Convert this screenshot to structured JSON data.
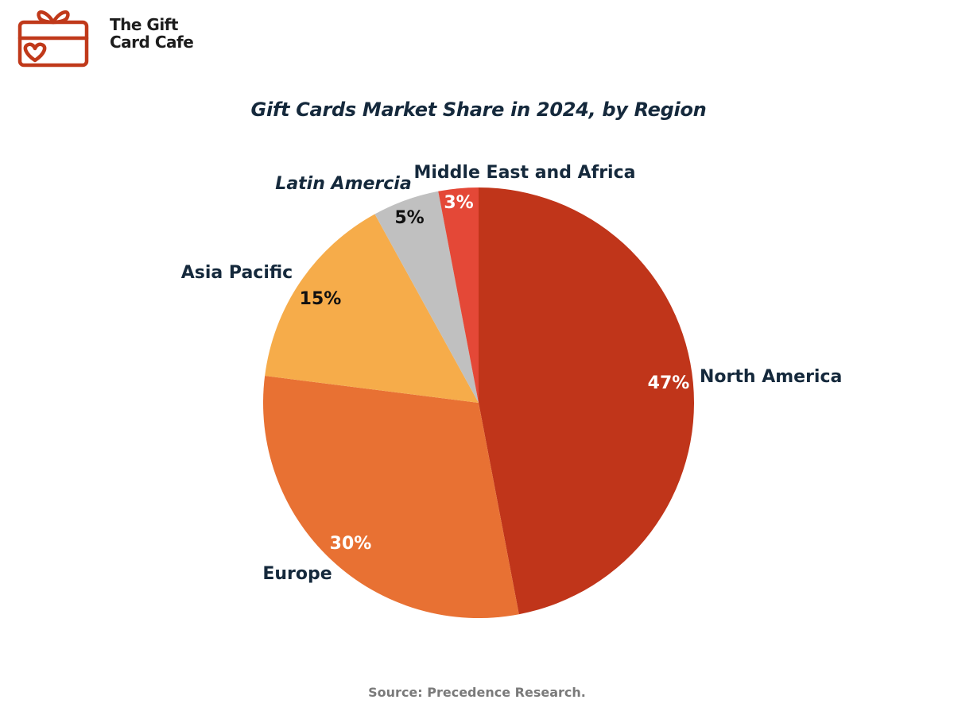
{
  "brand": {
    "name_line1": "The Gift",
    "name_line2": "Card Cafe",
    "logo_icon": "gift-card-icon",
    "logo_color": "#c0391a"
  },
  "chart_data": {
    "type": "pie",
    "title": "Gift Cards Market Share in 2024, by Region",
    "unit": "%",
    "categories": [
      "North America",
      "Europe",
      "Asia Pacific",
      "Latin Amercia",
      "Middle East and Africa"
    ],
    "values": [
      47,
      30,
      15,
      5,
      3
    ],
    "value_labels": [
      "47%",
      "30%",
      "15%",
      "5%",
      "3%"
    ],
    "colors": [
      "#c0351a",
      "#e87133",
      "#f6ac4a",
      "#c0c0c0",
      "#e44837"
    ],
    "start": "12 o'clock",
    "direction": "clockwise",
    "legend": "none"
  },
  "source": "Source: Precedence Research."
}
